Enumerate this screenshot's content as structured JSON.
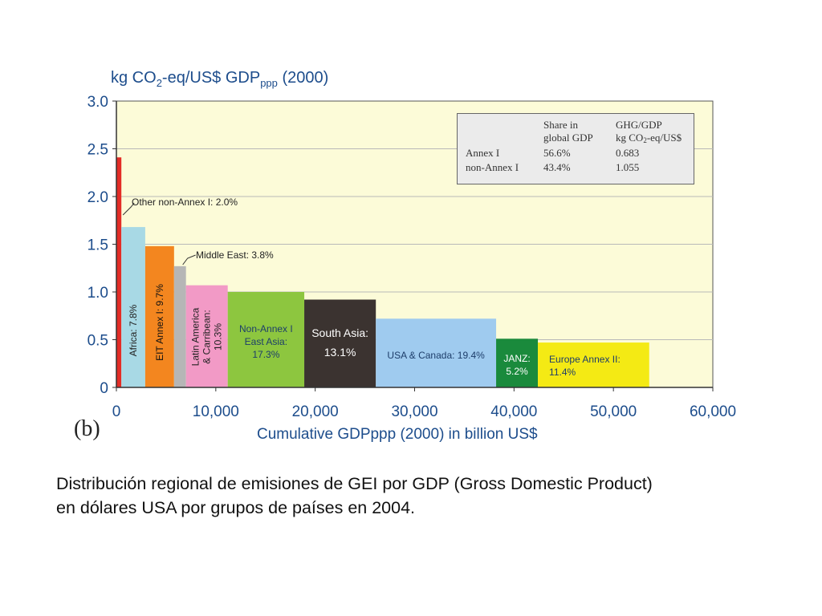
{
  "chart_data": {
    "type": "bar",
    "variable_width": true,
    "ylabel": {
      "prefix": "kg CO",
      "sub1": "2",
      "middle": "-eq/US$ GDP",
      "sub2": "ppp",
      "suffix": " (2000)"
    },
    "xlabel": "Cumulative GDPppp (2000) in billion US$",
    "panel_label": "(b)",
    "xlim": [
      0,
      60000
    ],
    "ylim": [
      0,
      3.0
    ],
    "x_ticks": [
      "0",
      "10,000",
      "20,000",
      "30,000",
      "40,000",
      "50,000",
      "60,000"
    ],
    "y_ticks": [
      "0",
      "0.5",
      "1.0",
      "1.5",
      "2.0",
      "2.5",
      "3.0"
    ],
    "grid": true,
    "background": "#fcfbd8",
    "series": [
      {
        "label": "Other non-Annex I: 2.0%",
        "x_start": 0,
        "x_end": 500,
        "value": 2.41,
        "color": "#e32c26",
        "text_color": "#222222",
        "lines": [
          "Other non-Annex I: 2.0%"
        ]
      },
      {
        "label": "Africa: 7.8%",
        "x_start": 500,
        "x_end": 2900,
        "value": 1.68,
        "color": "#a8d9e5",
        "text_color": "#222222",
        "lines": [
          "Africa: 7.8%"
        ]
      },
      {
        "label": "EIT Annex I: 9.7%",
        "x_start": 2900,
        "x_end": 5800,
        "value": 1.48,
        "color": "#f3861f",
        "text_color": "#111111",
        "lines": [
          "EIT Annex I: 9.7%"
        ]
      },
      {
        "label": "Middle East: 3.8%",
        "x_start": 5800,
        "x_end": 7000,
        "value": 1.27,
        "color": "#b6b6b6",
        "text_color": "#222222",
        "lines": [
          "Middle East: 3.8%"
        ]
      },
      {
        "label": "Latin America & Carribean: 10.3%",
        "x_start": 7000,
        "x_end": 11200,
        "value": 1.07,
        "color": "#f29ac6",
        "text_color": "#222222",
        "lines": [
          "Latin America",
          "& Carribean:",
          "10.3%"
        ]
      },
      {
        "label": "Non-Annex I East Asia: 17.3%",
        "x_start": 11200,
        "x_end": 18900,
        "value": 1.0,
        "color": "#8dc63f",
        "text_color": "#1d3d6a",
        "lines": [
          "Non-Annex I",
          "East Asia:",
          "17.3%"
        ]
      },
      {
        "label": "South Asia: 13.1%",
        "x_start": 18900,
        "x_end": 26100,
        "value": 0.92,
        "color": "#3b3330",
        "text_color": "#ffffff",
        "lines": [
          "South Asia:",
          "13.1%"
        ]
      },
      {
        "label": "USA & Canada: 19.4%",
        "x_start": 26100,
        "x_end": 38200,
        "value": 0.72,
        "color": "#9fcbef",
        "text_color": "#1d3d6a",
        "lines": [
          "USA & Canada: 19.4%"
        ]
      },
      {
        "label": "JANZ: 5.2%",
        "x_start": 38200,
        "x_end": 42400,
        "value": 0.51,
        "color": "#1a8a3c",
        "text_color": "#ffffff",
        "lines": [
          "JANZ:",
          "5.2%"
        ]
      },
      {
        "label": "Europe Annex II: 11.4%",
        "x_start": 42400,
        "x_end": 53600,
        "value": 0.47,
        "color": "#f4ea14",
        "text_color": "#1d3d6a",
        "lines": [
          "Europe Annex II:",
          "11.4%"
        ]
      }
    ]
  },
  "info_table": {
    "col1_header_line1": "Share in",
    "col1_header_line2": "global GDP",
    "col2_header_line1": "GHG/GDP",
    "col2_header_prefix": "kg CO",
    "col2_header_sub": "2",
    "col2_header_suffix": "-eq/US$",
    "rows": [
      {
        "name": "Annex I",
        "share": "56.6%",
        "ghg": "0.683"
      },
      {
        "name": "non-Annex I",
        "share": "43.4%",
        "ghg": "1.055"
      }
    ]
  },
  "caption": {
    "line1": "Distribución regional de emisiones de GEI por GDP (Gross Domestic Product)",
    "line2": "en dólares USA por grupos de países en 2004."
  }
}
